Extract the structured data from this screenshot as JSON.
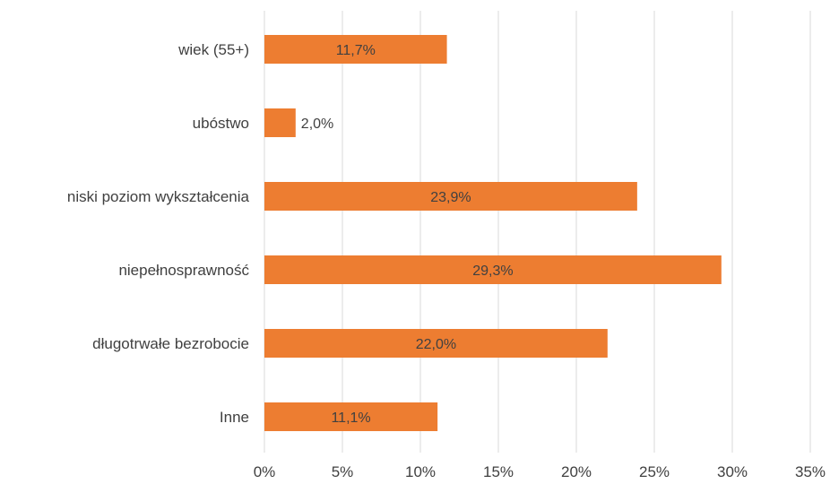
{
  "chart_data": {
    "type": "bar",
    "orientation": "horizontal",
    "categories": [
      "wiek (55+)",
      "ubóstwo",
      "niski poziom wykształcenia",
      "niepełnosprawność",
      "długotrwałe bezrobocie",
      "Inne"
    ],
    "values": [
      11.7,
      2.0,
      23.9,
      29.3,
      22.0,
      11.1
    ],
    "data_labels": [
      "11,7%",
      "2,0%",
      "23,9%",
      "29,3%",
      "22,0%",
      "11,1%"
    ],
    "xlim": [
      0,
      35
    ],
    "x_ticks": [
      0,
      5,
      10,
      15,
      20,
      25,
      30,
      35
    ],
    "x_tick_labels": [
      "0%",
      "5%",
      "10%",
      "15%",
      "20%",
      "25%",
      "30%",
      "35%"
    ],
    "grid": "vertical",
    "bar_color": "#ED7D31",
    "title": "",
    "xlabel": "",
    "ylabel": ""
  }
}
